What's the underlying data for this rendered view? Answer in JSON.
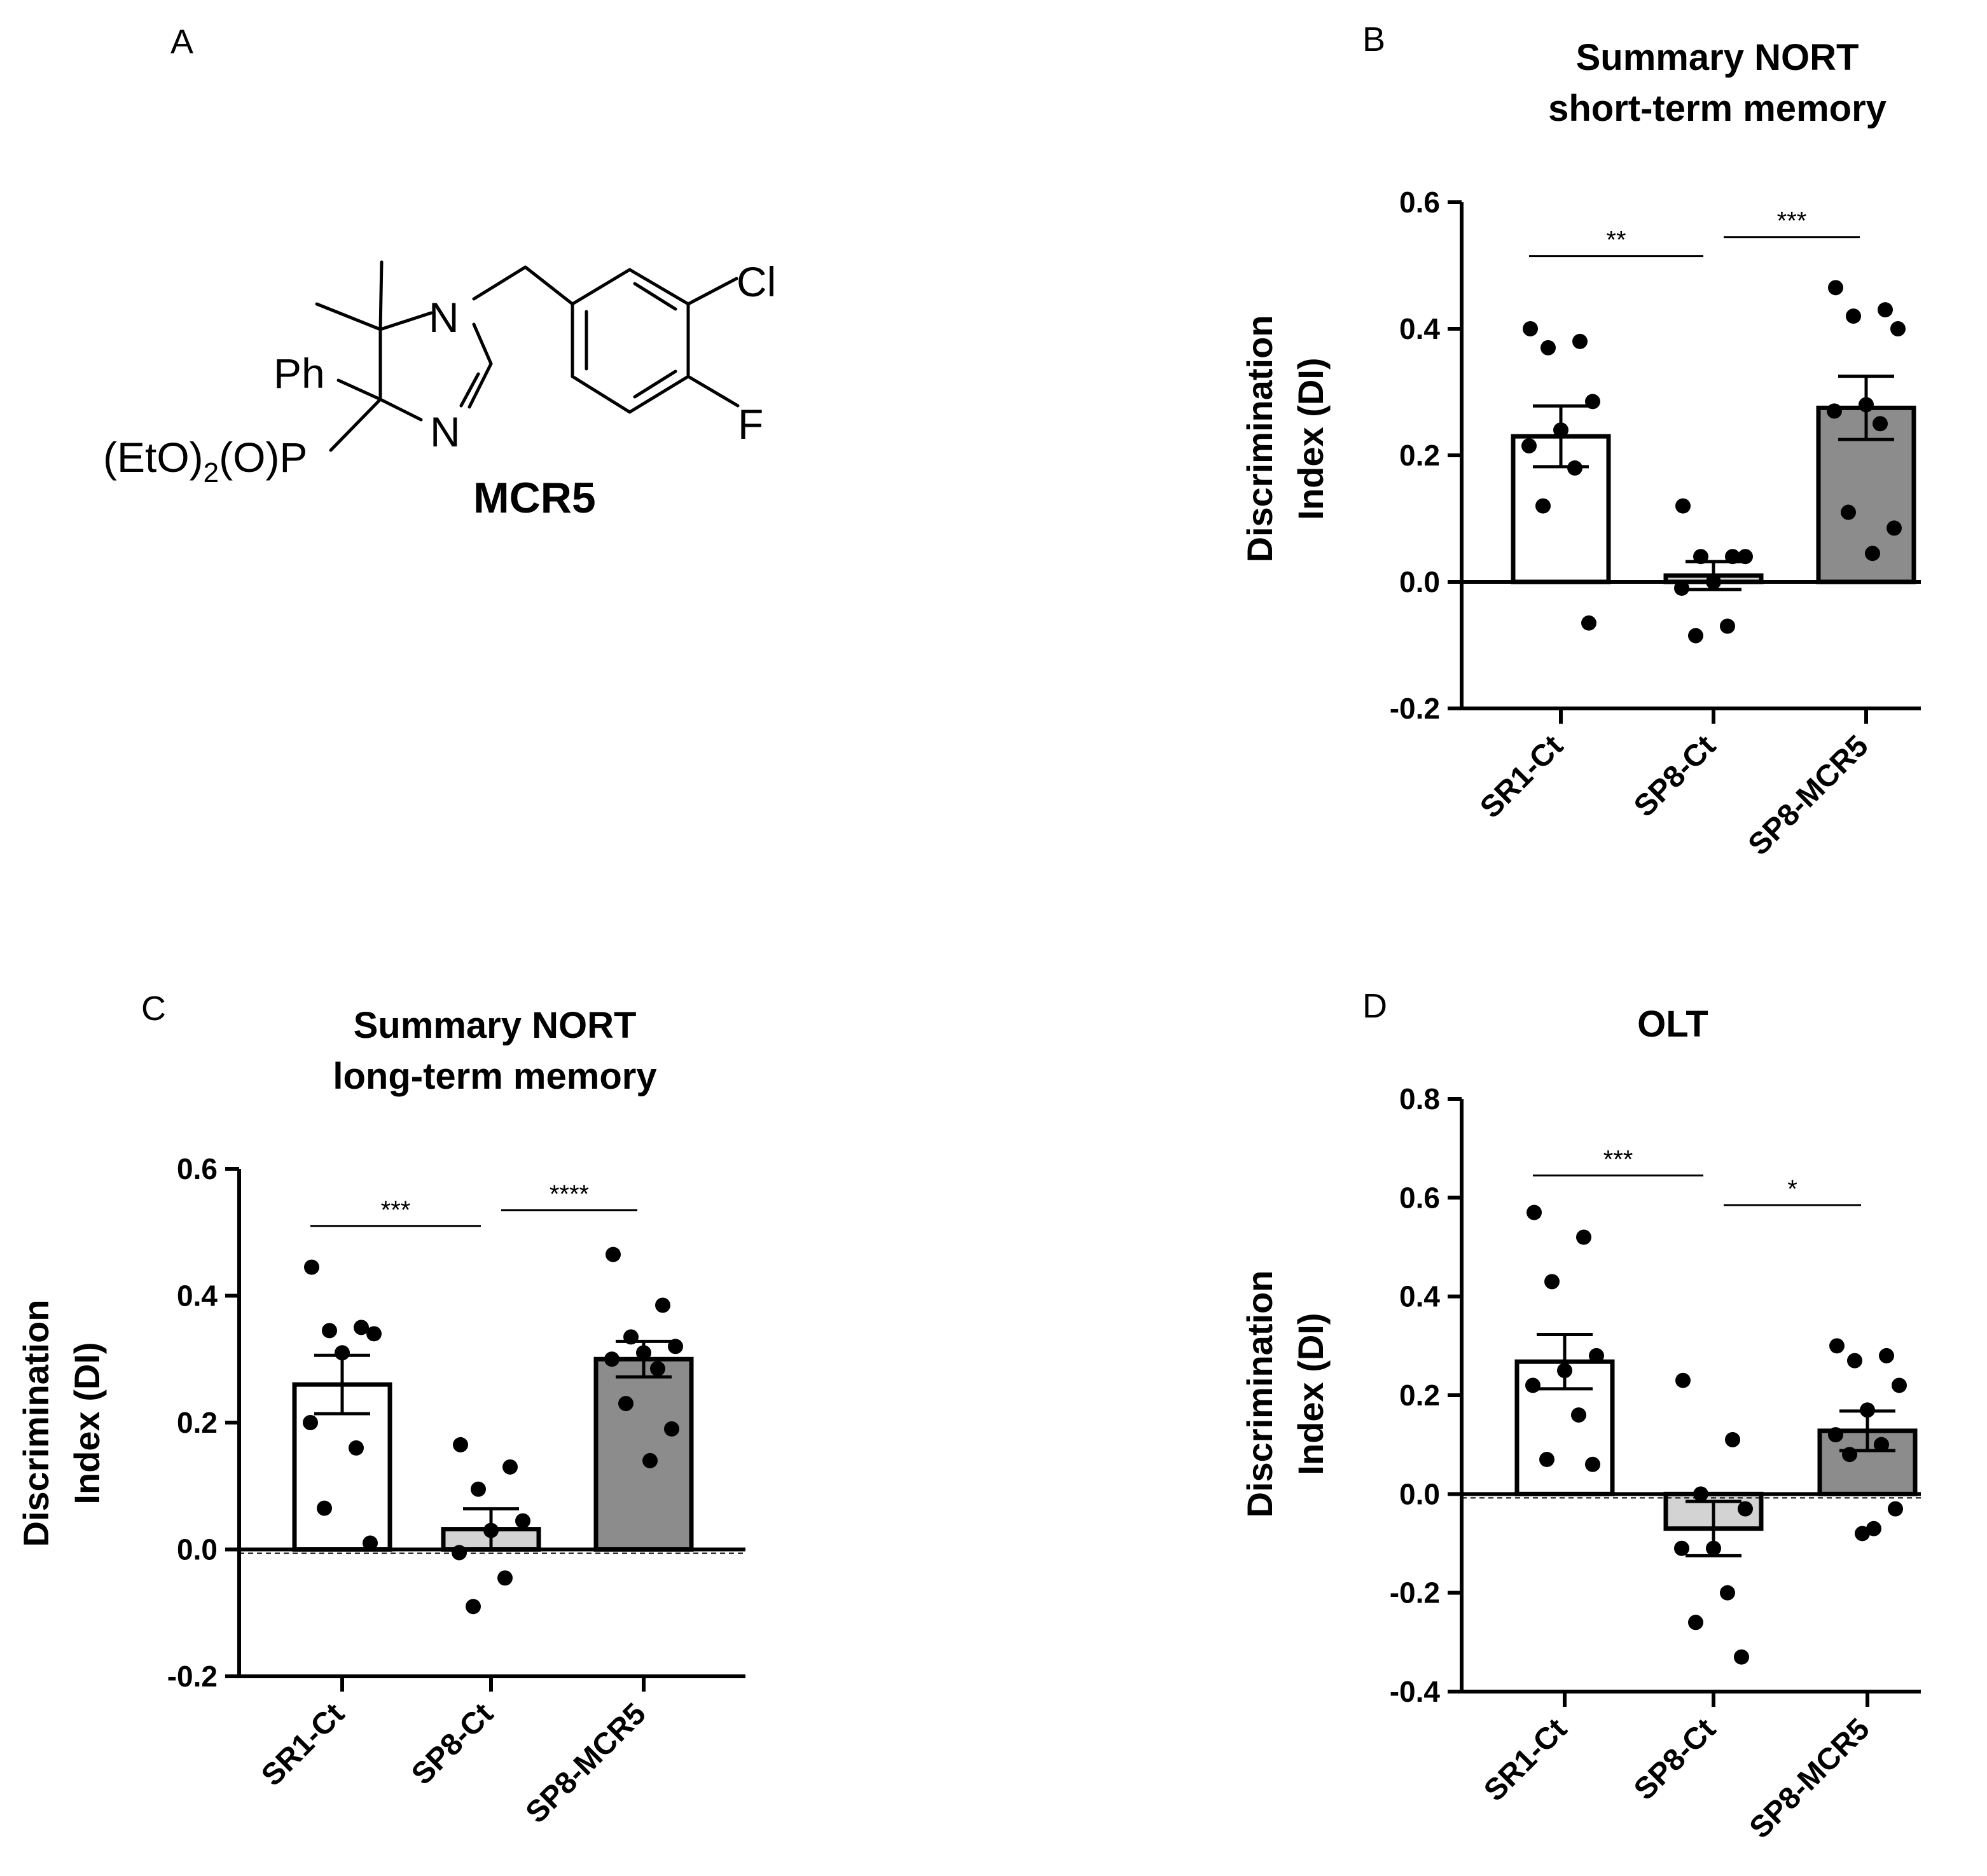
{
  "panel_a": {
    "letter": "A",
    "compound_name": "MCR5",
    "atoms": {
      "n_top": "N",
      "n_bottom": "N",
      "ph": "Ph",
      "cl": "Cl",
      "f": "F",
      "p_group_1": "(EtO)",
      "p_group_sub": "2",
      "p_group_2": "(O)P"
    }
  },
  "colors": {
    "SR1-Ct": "#ffffff",
    "SP8-Ct": "#d3d3d3",
    "SP8-MCR5": "#8c8c8c",
    "axis": "#000000",
    "points": "#000000"
  },
  "chart_data": [
    {
      "panel": "B",
      "type": "bar",
      "title_lines": [
        "Summary NORT",
        "short-term memory"
      ],
      "ylabel_lines": [
        "Discrimination",
        "Index (DI)"
      ],
      "xlabel": "",
      "categories": [
        "SR1-Ct",
        "SP8-Ct",
        "SP8-MCR5"
      ],
      "values": [
        0.23,
        0.01,
        0.275
      ],
      "sem": [
        0.048,
        0.022,
        0.05
      ],
      "points": [
        [
          0.4,
          0.38,
          0.37,
          0.285,
          0.24,
          0.215,
          0.18,
          0.12,
          -0.065
        ],
        [
          0.12,
          0.04,
          0.04,
          0.04,
          0.0,
          -0.01,
          -0.07,
          -0.085
        ],
        [
          0.465,
          0.43,
          0.42,
          0.4,
          0.28,
          0.27,
          0.25,
          0.11,
          0.085,
          0.045
        ]
      ],
      "ylim": [
        -0.2,
        0.6
      ],
      "yticks": [
        -0.2,
        0.0,
        0.2,
        0.4,
        0.6
      ],
      "ytick_labels": [
        "-0.2",
        "0.0",
        "0.2",
        "0.4",
        "0.6"
      ],
      "dashed_zero": false,
      "significance": [
        {
          "from": 0,
          "to": 1,
          "label": "**",
          "y": 0.515
        },
        {
          "from": 1,
          "to": 2,
          "label": "***",
          "y": 0.545
        }
      ]
    },
    {
      "panel": "C",
      "type": "bar",
      "title_lines": [
        "Summary NORT",
        "long-term memory"
      ],
      "ylabel_lines": [
        "Discrimination",
        "Index (DI)"
      ],
      "xlabel": "",
      "categories": [
        "SR1-Ct",
        "SP8-Ct",
        "SP8-MCR5"
      ],
      "values": [
        0.26,
        0.032,
        0.3
      ],
      "sem": [
        0.046,
        0.032,
        0.028
      ],
      "points": [
        [
          0.445,
          0.35,
          0.345,
          0.34,
          0.31,
          0.2,
          0.16,
          0.065,
          0.01
        ],
        [
          0.165,
          0.13,
          0.095,
          0.045,
          0.03,
          -0.005,
          -0.045,
          -0.09
        ],
        [
          0.465,
          0.385,
          0.335,
          0.32,
          0.31,
          0.3,
          0.285,
          0.23,
          0.19,
          0.14
        ]
      ],
      "ylim": [
        -0.2,
        0.6
      ],
      "yticks": [
        -0.2,
        0.0,
        0.2,
        0.4,
        0.6
      ],
      "ytick_labels": [
        "-0.2",
        "0.0",
        "0.2",
        "0.4",
        "0.6"
      ],
      "dashed_zero": true,
      "significance": [
        {
          "from": 0,
          "to": 1,
          "label": "***",
          "y": 0.51
        },
        {
          "from": 1,
          "to": 2,
          "label": "****",
          "y": 0.535
        }
      ]
    },
    {
      "panel": "D",
      "type": "bar",
      "title_lines": [
        "OLT"
      ],
      "ylabel_lines": [
        "Discrimination",
        "Index (DI)"
      ],
      "xlabel": "",
      "categories": [
        "SR1-Ct",
        "SP8-Ct",
        "SP8-MCR5"
      ],
      "values": [
        0.268,
        -0.07,
        0.128
      ],
      "sem": [
        0.055,
        0.055,
        0.04
      ],
      "points": [
        [
          0.57,
          0.52,
          0.43,
          0.28,
          0.25,
          0.22,
          0.16,
          0.07,
          0.06
        ],
        [
          0.23,
          0.11,
          0.0,
          -0.03,
          -0.11,
          -0.11,
          -0.2,
          -0.26,
          -0.33
        ],
        [
          0.3,
          0.28,
          0.27,
          0.22,
          0.17,
          0.12,
          0.1,
          0.08,
          -0.03,
          -0.07,
          -0.08
        ]
      ],
      "ylim": [
        -0.4,
        0.8
      ],
      "yticks": [
        -0.4,
        -0.2,
        0.0,
        0.2,
        0.4,
        0.6,
        0.8
      ],
      "ytick_labels": [
        "-0.4",
        "-0.2",
        "0.0",
        "0.2",
        "0.4",
        "0.6",
        "0.8"
      ],
      "dashed_zero": true,
      "significance": [
        {
          "from": 0,
          "to": 1,
          "label": "***",
          "y": 0.645
        },
        {
          "from": 1,
          "to": 2,
          "label": "*",
          "y": 0.585
        }
      ]
    }
  ]
}
